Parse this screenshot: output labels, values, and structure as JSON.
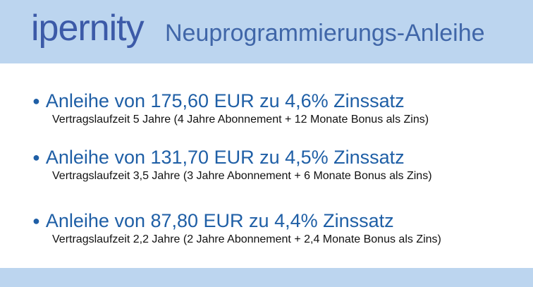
{
  "header": {
    "logo": "ipernity",
    "title": "Neuprogrammierungs-Anleihe"
  },
  "items": [
    {
      "title": "Anleihe von 175,60 EUR zu 4,6% Zinssatz",
      "detail": "Vertragslaufzeit 5 Jahre (4 Jahre Abonnement + 12 Monate Bonus als Zins)"
    },
    {
      "title": "Anleihe von 131,70 EUR zu 4,5% Zinssatz",
      "detail": "Vertragslaufzeit 3,5 Jahre (3 Jahre Abonnement + 6 Monate Bonus als Zins)"
    },
    {
      "title": "Anleihe von 87,80 EUR zu 4,4% Zinssatz",
      "detail": "Vertragslaufzeit 2,2 Jahre (2 Jahre Abonnement + 2,4 Monate Bonus als Zins)"
    }
  ]
}
